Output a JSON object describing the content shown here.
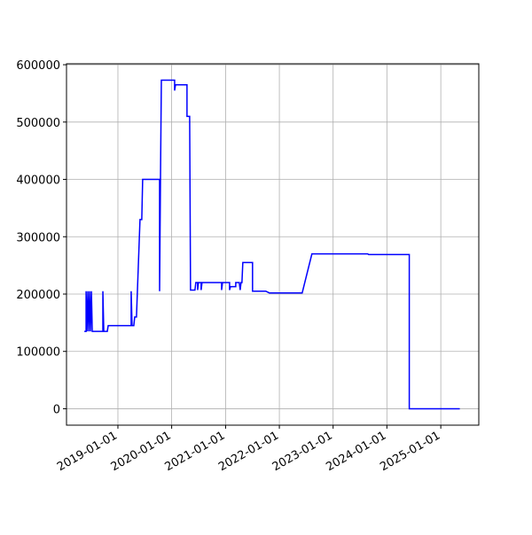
{
  "chart_data": {
    "type": "line",
    "color": "#0000ff",
    "grid": true,
    "x": [
      "2018-05-18",
      "2018-05-30",
      "2018-05-30",
      "2018-06-05",
      "2018-06-11",
      "2018-06-17",
      "2018-06-23",
      "2018-06-29",
      "2018-07-05",
      "2018-07-11",
      "2018-09-21",
      "2018-09-21",
      "2018-09-27",
      "2018-10-21",
      "2018-10-27",
      "2019-04-01",
      "2019-04-01",
      "2019-04-07",
      "2019-04-19",
      "2019-04-25",
      "2019-05-07",
      "2019-05-31",
      "2019-06-12",
      "2019-06-18",
      "2019-10-11",
      "2019-10-11",
      "2019-10-17",
      "2019-10-23",
      "2020-01-21",
      "2020-01-21",
      "2020-01-27",
      "2020-04-14",
      "2020-04-14",
      "2020-05-02",
      "2020-05-08",
      "2020-06-07",
      "2020-06-13",
      "2020-06-25",
      "2020-06-25",
      "2020-07-01",
      "2020-07-19",
      "2020-07-19",
      "2020-07-25",
      "2020-12-05",
      "2020-12-05",
      "2020-12-11",
      "2021-01-28",
      "2021-01-28",
      "2021-02-03",
      "2021-03-11",
      "2021-03-11",
      "2021-04-04",
      "2021-04-10",
      "2021-04-16",
      "2021-04-22",
      "2021-04-28",
      "2021-07-03",
      "2021-07-03",
      "2021-10-01",
      "2021-10-25",
      "2022-06-05",
      "2022-08-10",
      "2023-08-24",
      "2023-08-30",
      "2024-06-01",
      "2024-06-01",
      "2025-05-10"
    ],
    "values": [
      135000,
      135000,
      205000,
      135000,
      205000,
      135000,
      205000,
      135000,
      205000,
      135000,
      135000,
      205000,
      135000,
      135000,
      145000,
      145000,
      205000,
      145000,
      145000,
      160000,
      160000,
      330000,
      330000,
      400000,
      400000,
      205000,
      400000,
      573000,
      573000,
      555000,
      565000,
      565000,
      510000,
      510000,
      207000,
      207000,
      220000,
      220000,
      207000,
      220000,
      220000,
      207000,
      220000,
      220000,
      207000,
      220000,
      220000,
      207000,
      213000,
      213000,
      220000,
      220000,
      207000,
      220000,
      220000,
      255000,
      255000,
      205000,
      205000,
      202000,
      202000,
      270000,
      270000,
      269000,
      269000,
      0,
      0
    ],
    "xlim": [
      "2018-01-17",
      "2025-09-16"
    ],
    "xticks": [
      "2019-01-01",
      "2020-01-01",
      "2021-01-01",
      "2022-01-01",
      "2023-01-01",
      "2024-01-01",
      "2025-01-01"
    ],
    "ylim": [
      -28650,
      601650
    ],
    "yticks": [
      0,
      100000,
      200000,
      300000,
      400000,
      500000,
      600000
    ]
  }
}
